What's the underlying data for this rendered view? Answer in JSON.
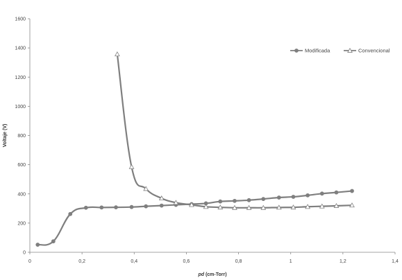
{
  "chart_data": {
    "type": "line",
    "xlabel_italic": "pd",
    "xlabel_rest": " (cm-Torr)",
    "ylabel": "Voltaje (V)",
    "xlim": [
      0,
      1.4
    ],
    "ylim": [
      0,
      1600
    ],
    "x_ticks": [
      "0",
      "0,2",
      "0,4",
      "0,6",
      "0,8",
      "1",
      "1,2",
      "1,4"
    ],
    "y_ticks": [
      "0",
      "200",
      "400",
      "600",
      "800",
      "1000",
      "1200",
      "1400",
      "1600"
    ],
    "grid": false,
    "legend_position": "top-right",
    "colors": {
      "series": "#7f7f7f",
      "axis": "#888888"
    },
    "series": [
      {
        "name": "Modificada",
        "marker": "circle",
        "x": [
          0.03,
          0.09,
          0.155,
          0.215,
          0.275,
          0.33,
          0.39,
          0.445,
          0.505,
          0.56,
          0.62,
          0.675,
          0.73,
          0.785,
          0.84,
          0.895,
          0.955,
          1.01,
          1.065,
          1.12,
          1.175,
          1.235
        ],
        "y": [
          52,
          75,
          262,
          305,
          307,
          308,
          310,
          315,
          320,
          325,
          330,
          335,
          348,
          352,
          357,
          365,
          375,
          380,
          390,
          402,
          410,
          420
        ]
      },
      {
        "name": "Convencional",
        "marker": "triangle",
        "x": [
          0.335,
          0.39,
          0.445,
          0.505,
          0.56,
          0.62,
          0.675,
          0.73,
          0.785,
          0.84,
          0.895,
          0.955,
          1.01,
          1.065,
          1.12,
          1.175,
          1.235
        ],
        "y": [
          1357,
          585,
          435,
          370,
          340,
          325,
          312,
          308,
          305,
          305,
          305,
          307,
          308,
          312,
          315,
          318,
          322
        ]
      }
    ]
  }
}
